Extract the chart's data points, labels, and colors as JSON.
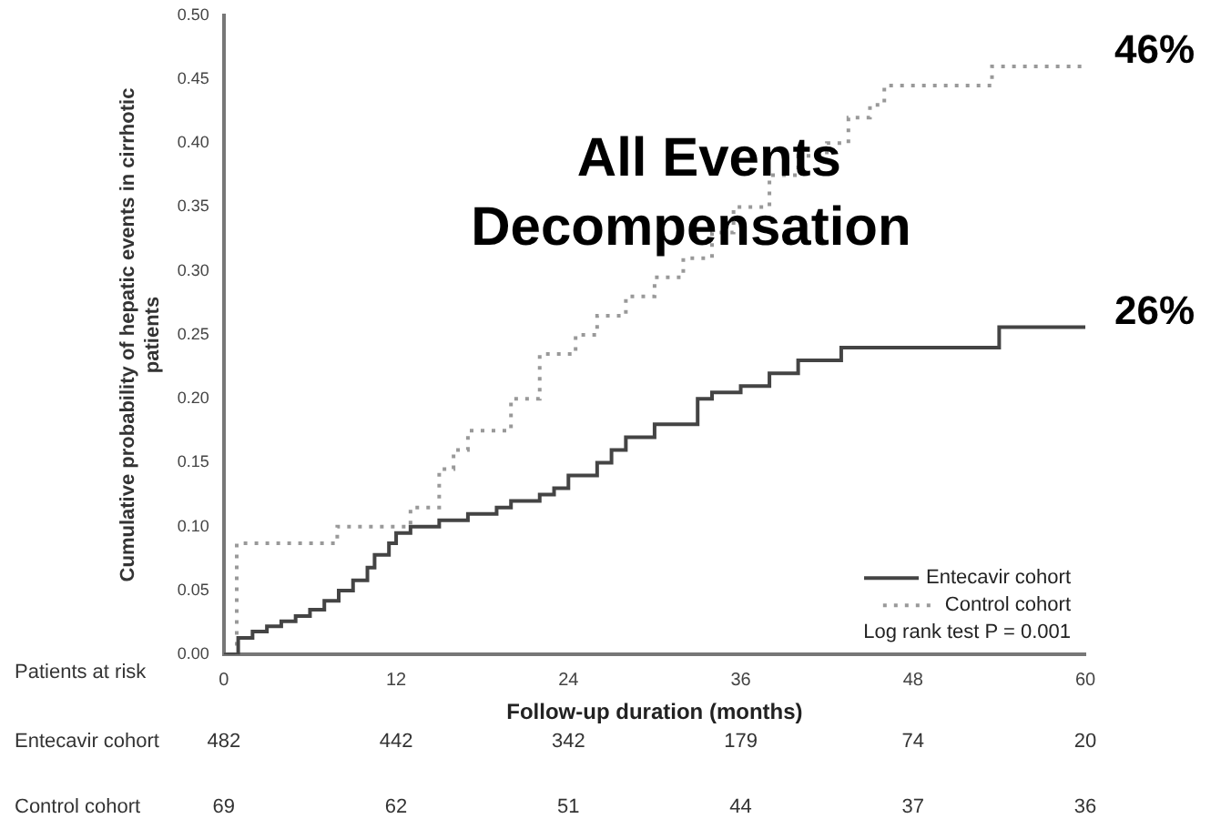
{
  "chart_data": {
    "type": "step",
    "title": "All Events Decompensation",
    "xlabel": "Follow-up duration (months)",
    "ylabel": "Cumulative probability of hepatic events in cirrhotic patients",
    "xlim": [
      0,
      60
    ],
    "xticks": [
      0,
      12,
      24,
      36,
      48,
      60
    ],
    "ylim": [
      0,
      0.5
    ],
    "yticks": [
      {
        "value": 0,
        "label": "0.00"
      },
      {
        "value": 0.05,
        "label": "0.05"
      },
      {
        "value": 0.1,
        "label": "0.10"
      },
      {
        "value": 0.15,
        "label": "0.15"
      },
      {
        "value": 0.2,
        "label": "0.20"
      },
      {
        "value": 0.25,
        "label": "0.25"
      },
      {
        "value": 0.3,
        "label": "0.30"
      },
      {
        "value": 0.35,
        "label": "0.35"
      },
      {
        "value": 0.4,
        "label": "0.40"
      },
      {
        "value": 0.45,
        "label": "0.45"
      },
      {
        "value": 0.5,
        "label": "0.50"
      }
    ],
    "grid": false,
    "legend": "bottom right",
    "marker": "none",
    "series": [
      {
        "name": "Entecavir cohort",
        "color": "#444444",
        "line_style": "solid",
        "x": [
          0,
          1,
          2,
          3,
          4,
          5,
          6,
          7,
          8,
          9,
          10,
          10.5,
          11.5,
          12,
          13,
          15,
          17,
          19,
          20,
          22,
          23,
          24,
          26,
          27,
          28,
          30,
          33,
          34,
          36,
          38,
          40,
          43,
          54,
          60
        ],
        "values": [
          0,
          0.013,
          0.018,
          0.022,
          0.026,
          0.03,
          0.035,
          0.042,
          0.05,
          0.058,
          0.068,
          0.078,
          0.087,
          0.095,
          0.1,
          0.105,
          0.11,
          0.115,
          0.12,
          0.125,
          0.13,
          0.14,
          0.15,
          0.16,
          0.17,
          0.18,
          0.2,
          0.205,
          0.21,
          0.22,
          0.23,
          0.24,
          0.256,
          0.256
        ]
      },
      {
        "name": "Control cohort",
        "color": "#999999",
        "line_style": "dotted",
        "x": [
          0,
          0.9,
          7.9,
          13,
          15,
          16,
          17,
          20,
          22,
          24.5,
          26,
          28,
          30,
          32,
          34,
          35.5,
          38,
          40,
          42,
          43.5,
          45,
          46,
          53.5,
          60
        ],
        "values": [
          0,
          0.087,
          0.1,
          0.115,
          0.145,
          0.16,
          0.175,
          0.2,
          0.235,
          0.25,
          0.265,
          0.28,
          0.295,
          0.31,
          0.33,
          0.35,
          0.375,
          0.39,
          0.4,
          0.42,
          0.43,
          0.445,
          0.46,
          0.46
        ]
      }
    ],
    "annotations": [
      {
        "text": "46%",
        "x": 60,
        "y": 0.46
      },
      {
        "text": "26%",
        "x": 60,
        "y": 0.256
      },
      "Log rank test P = 0.001",
      "Patients at risk",
      "Entecavir cohort",
      "482",
      "442",
      "342",
      "179",
      "74",
      "20",
      "Control cohort",
      "69",
      "62",
      "51",
      "44",
      "37",
      "36"
    ]
  }
}
